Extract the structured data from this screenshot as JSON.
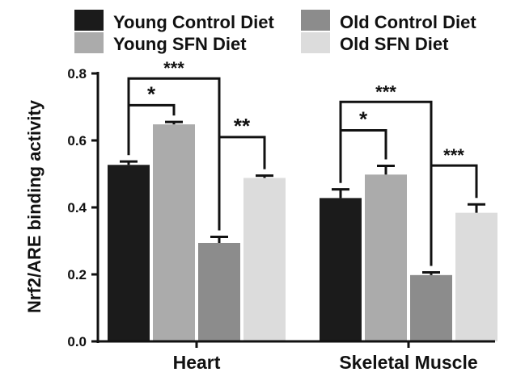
{
  "chart_data": {
    "type": "bar",
    "title": "",
    "xlabel": "",
    "ylabel": "Nrf2/ARE binding activity",
    "ylim": [
      0,
      0.8
    ],
    "yticks": [
      "0.0",
      "0.2",
      "0.4",
      "0.6",
      "0.8"
    ],
    "categories": [
      "Heart",
      "Skeletal Muscle"
    ],
    "legend_position": "top",
    "series": [
      {
        "name": "Young Control Diet",
        "color": "#1b1b1b",
        "values": [
          0.527,
          0.428
        ],
        "errors": [
          0.01,
          0.026
        ]
      },
      {
        "name": "Young SFN Diet",
        "color": "#ababab",
        "values": [
          0.648,
          0.498
        ],
        "errors": [
          0.007,
          0.026
        ]
      },
      {
        "name": "Old Control Diet",
        "color": "#8c8c8c",
        "values": [
          0.294,
          0.198
        ],
        "errors": [
          0.018,
          0.008
        ]
      },
      {
        "name": "Old SFN Diet",
        "color": "#dcdcdc",
        "values": [
          0.488,
          0.384
        ],
        "errors": [
          0.007,
          0.025
        ]
      }
    ],
    "significance": [
      {
        "category": 0,
        "from": 0,
        "to": 2,
        "label": "***",
        "y": 0.785
      },
      {
        "category": 0,
        "from": 0,
        "to": 1,
        "label": "*",
        "y": 0.705
      },
      {
        "category": 0,
        "from": 2,
        "to": 3,
        "label": "**",
        "y": 0.61
      },
      {
        "category": 1,
        "from": 0,
        "to": 2,
        "label": "***",
        "y": 0.715
      },
      {
        "category": 1,
        "from": 0,
        "to": 1,
        "label": "*",
        "y": 0.63
      },
      {
        "category": 1,
        "from": 2,
        "to": 3,
        "label": "***",
        "y": 0.525
      }
    ]
  }
}
